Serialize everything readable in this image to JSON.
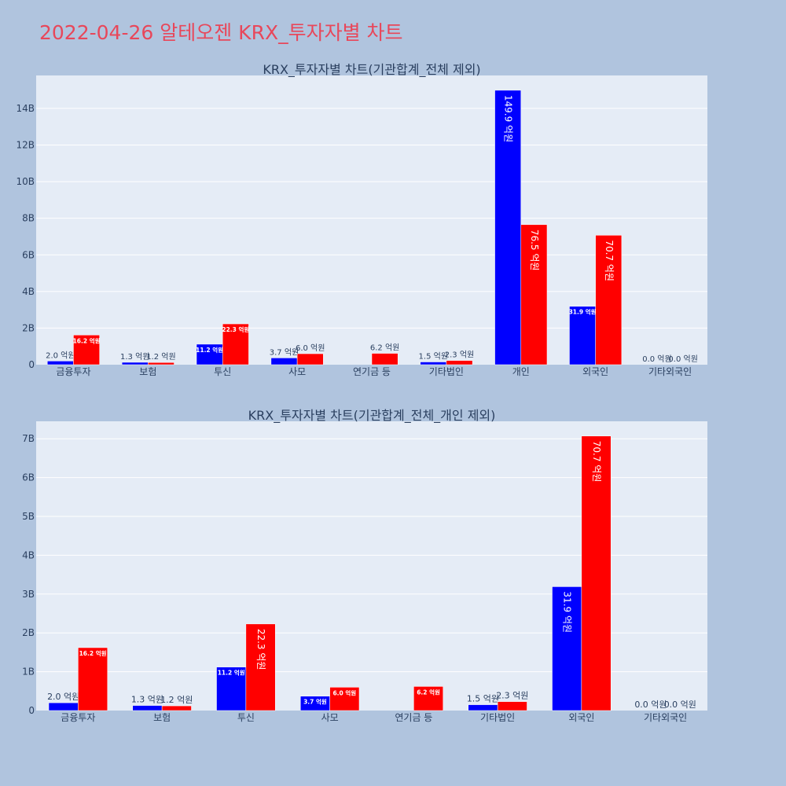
{
  "page_title": "2022-04-26 알테오젠 KRX_투자자별 차트",
  "colors": {
    "background": "#b0c4de",
    "plot_bg": "#e5ecf6",
    "title": "#e8475a",
    "series_a": "#0000ff",
    "series_b": "#ff0000"
  },
  "chart_data": [
    {
      "type": "bar",
      "title": "KRX_투자자별 차트(기관합계_전체 제외)",
      "categories": [
        "금융투자",
        "보험",
        "투신",
        "사모",
        "연기금 등",
        "기타법인",
        "개인",
        "외국인",
        "기타외국인"
      ],
      "series": [
        {
          "values": [
            0.2,
            0.13,
            1.12,
            0.37,
            0.0,
            0.15,
            14.99,
            3.19,
            0.0
          ],
          "labels": [
            "2.0 억원",
            "1.3 억원",
            "11.2 억원",
            "3.7 억원",
            "",
            "1.5 억원",
            "149.9 억원",
            "31.9 억원",
            "0.0 억원"
          ]
        },
        {
          "values": [
            1.62,
            0.12,
            2.23,
            0.6,
            0.62,
            0.23,
            7.65,
            7.07,
            0.0
          ],
          "labels": [
            "16.2 억원",
            "1.2 억원",
            "22.3 억원",
            "6.0 억원",
            "6.2 억원",
            "2.3 억원",
            "76.5 억원",
            "70.7 억원",
            "0.0 억원"
          ]
        }
      ],
      "y_ticks": [
        0,
        2,
        4,
        6,
        8,
        10,
        12,
        14
      ],
      "y_tick_labels": [
        "0",
        "2B",
        "4B",
        "6B",
        "8B",
        "10B",
        "12B",
        "14B"
      ],
      "ylim": [
        0,
        15.8
      ],
      "grid": true,
      "legend": "none"
    },
    {
      "type": "bar",
      "title": "KRX_투자자별 차트(기관합계_전체_개인 제외)",
      "categories": [
        "금융투자",
        "보험",
        "투신",
        "사모",
        "연기금 등",
        "기타법인",
        "외국인",
        "기타외국인"
      ],
      "series": [
        {
          "values": [
            0.2,
            0.13,
            1.12,
            0.37,
            0.0,
            0.15,
            3.19,
            0.0
          ],
          "labels": [
            "2.0 억원",
            "1.3 억원",
            "11.2 억원",
            "3.7 억원",
            "",
            "1.5 억원",
            "31.9 억원",
            "0.0 억원"
          ]
        },
        {
          "values": [
            1.62,
            0.12,
            2.23,
            0.6,
            0.62,
            0.23,
            7.07,
            0.0
          ],
          "labels": [
            "16.2 억원",
            "1.2 억원",
            "22.3 억원",
            "6.0 억원",
            "6.2 억원",
            "2.3 억원",
            "70.7 억원",
            "0.0 억원"
          ]
        }
      ],
      "y_ticks": [
        0,
        1,
        2,
        3,
        4,
        5,
        6,
        7
      ],
      "y_tick_labels": [
        "0",
        "1B",
        "2B",
        "3B",
        "4B",
        "5B",
        "6B",
        "7B"
      ],
      "ylim": [
        0,
        7.45
      ],
      "grid": true,
      "legend": "none"
    }
  ]
}
